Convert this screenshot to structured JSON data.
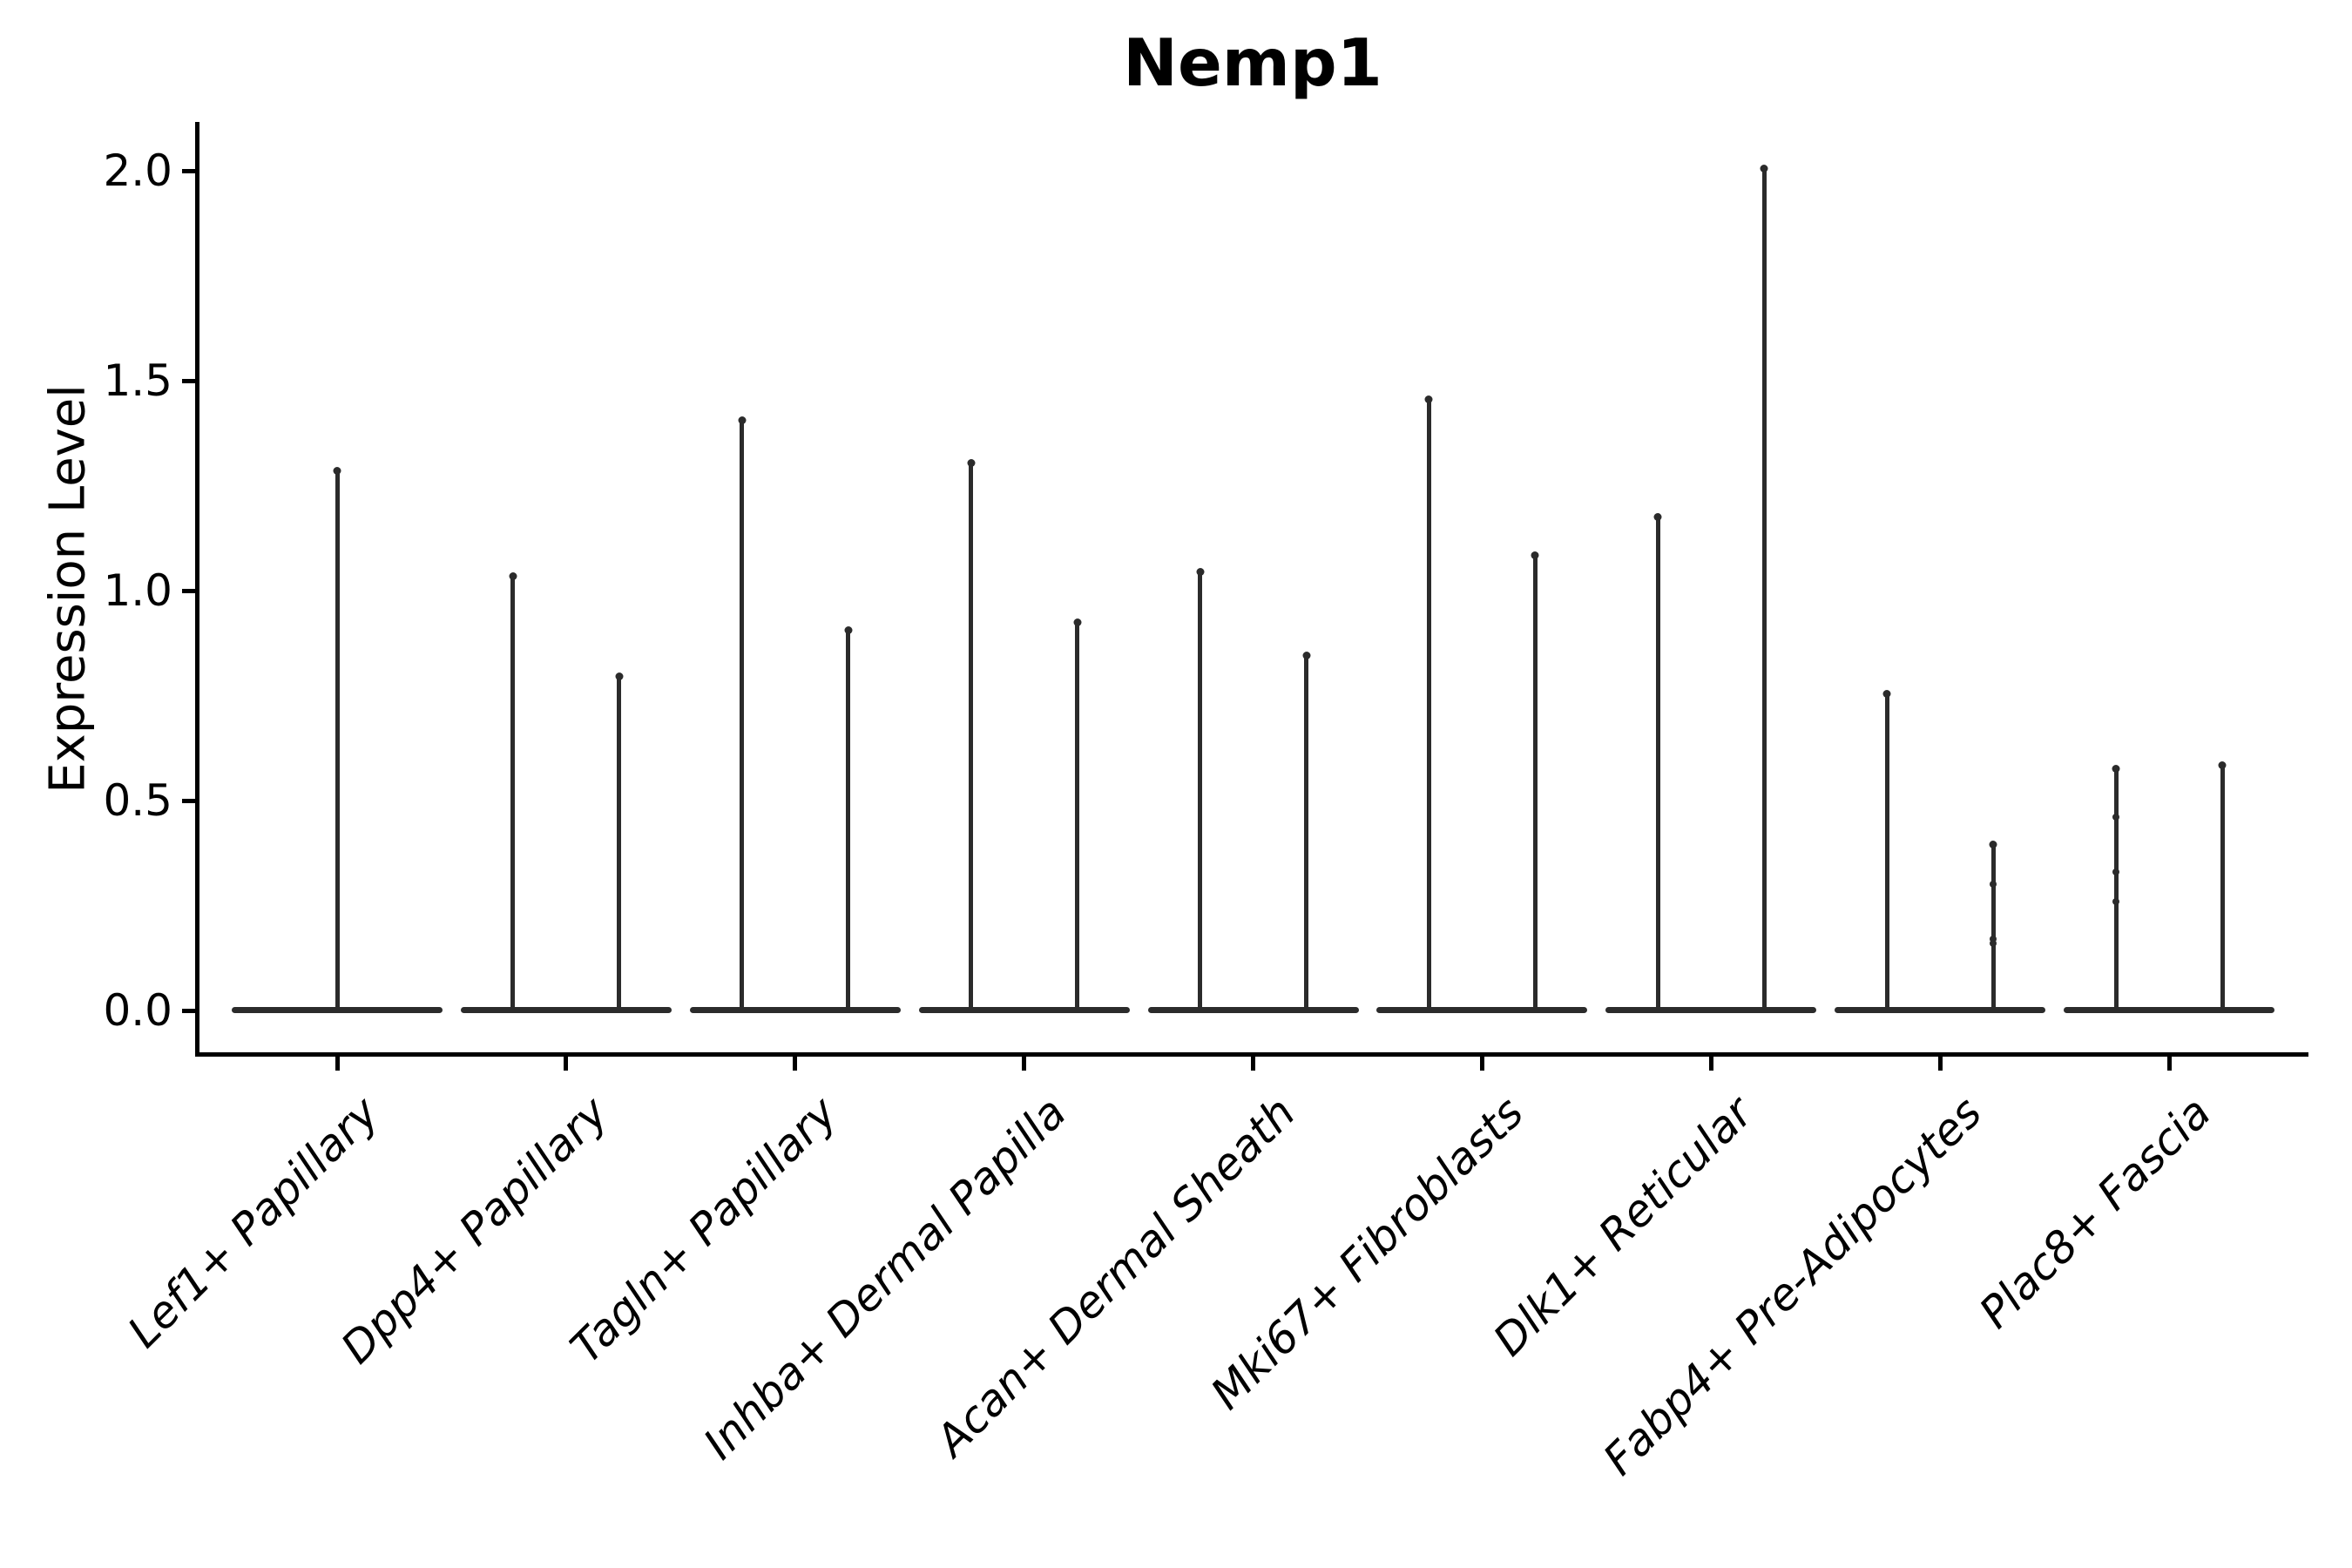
{
  "chart_data": {
    "type": "violin",
    "title": "Nemp1",
    "ylabel": "Expression Level",
    "xlabel": "",
    "ylim": [
      0.0,
      2.12
    ],
    "grid": false,
    "legend": null,
    "yticks": [
      {
        "label": "0.0",
        "value": 0.0
      },
      {
        "label": "0.5",
        "value": 0.5
      },
      {
        "label": "1.0",
        "value": 1.0
      },
      {
        "label": "1.5",
        "value": 1.5
      },
      {
        "label": "2.0",
        "value": 2.0
      }
    ],
    "description": "Distributions are concentrated at 0 (flat base line) with a thin spike up to each group's maximum expression value.",
    "colors": {
      "violin_line": "#2b2b2b",
      "axis": "#000000",
      "background": "#ffffff"
    },
    "groups": [
      {
        "category": "Lef1+ Papillary",
        "violins": [
          {
            "position": "center",
            "max": 1.29,
            "points": []
          }
        ]
      },
      {
        "category": "Dpp4+ Papillary",
        "violins": [
          {
            "position": "left",
            "max": 1.04,
            "points": []
          },
          {
            "position": "right",
            "max": 0.8,
            "points": []
          }
        ]
      },
      {
        "category": "Tagln+ Papillary",
        "violins": [
          {
            "position": "left",
            "max": 1.41,
            "points": []
          },
          {
            "position": "right",
            "max": 0.91,
            "points": []
          }
        ]
      },
      {
        "category": "Inhba+ Dermal Papilla",
        "violins": [
          {
            "position": "left",
            "max": 1.31,
            "points": []
          },
          {
            "position": "right",
            "max": 0.93,
            "points": []
          }
        ]
      },
      {
        "category": "Acan+ Dermal Sheath",
        "violins": [
          {
            "position": "left",
            "max": 1.05,
            "points": []
          },
          {
            "position": "right",
            "max": 0.85,
            "points": []
          }
        ]
      },
      {
        "category": "Mki67+ Fibroblasts",
        "violins": [
          {
            "position": "left",
            "max": 1.46,
            "points": []
          },
          {
            "position": "right",
            "max": 1.09,
            "points": []
          }
        ]
      },
      {
        "category": "Dlk1+ Reticular",
        "violins": [
          {
            "position": "left",
            "max": 1.18,
            "points": []
          },
          {
            "position": "right",
            "max": 2.01,
            "points": []
          }
        ]
      },
      {
        "category": "Fabp4+ Pre-Adipocytes",
        "violins": [
          {
            "position": "left",
            "max": 0.76,
            "points": []
          },
          {
            "position": "right",
            "max": 0.4,
            "points": [
              0.3,
              0.17,
              0.16
            ]
          }
        ]
      },
      {
        "category": "Plac8+ Fascia",
        "violins": [
          {
            "position": "left",
            "max": 0.58,
            "points": [
              0.46,
              0.33,
              0.26
            ]
          },
          {
            "position": "right",
            "max": 0.59,
            "points": []
          }
        ]
      }
    ]
  }
}
